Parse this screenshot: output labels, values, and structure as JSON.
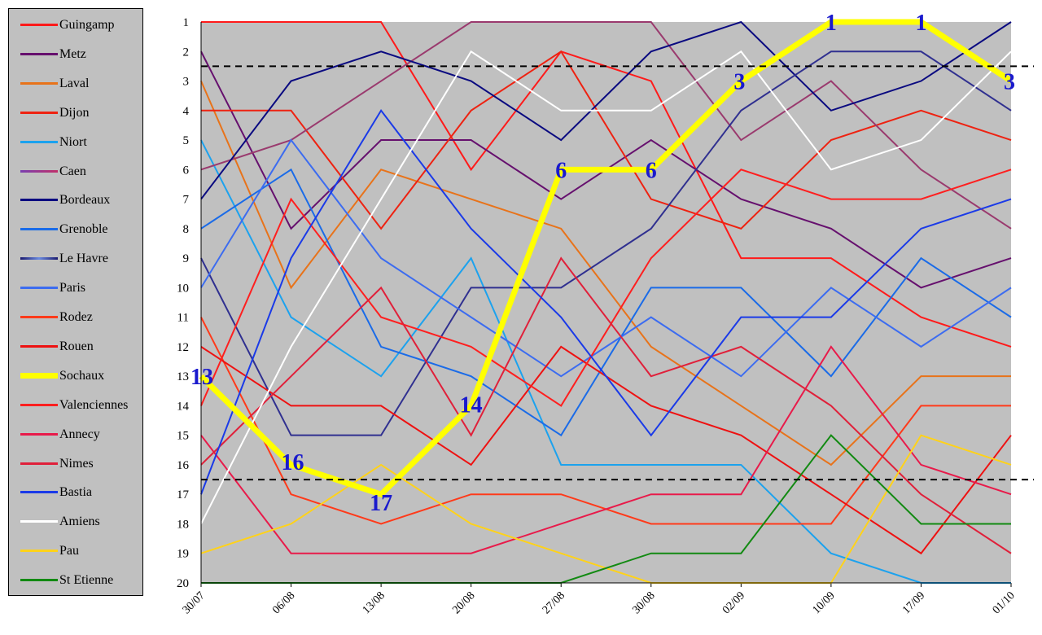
{
  "chart_data": {
    "type": "line",
    "title": "",
    "xlabel": "",
    "ylabel": "",
    "ylim": [
      1,
      20
    ],
    "y_inverted": true,
    "y_ticks": [
      "1",
      "2",
      "3",
      "4",
      "5",
      "6",
      "7",
      "8",
      "9",
      "10",
      "11",
      "12",
      "13",
      "14",
      "15",
      "16",
      "17",
      "18",
      "19",
      "20"
    ],
    "categories": [
      "30/07",
      "06/08",
      "13/08",
      "20/08",
      "27/08",
      "30/08",
      "02/09",
      "10/09",
      "17/09",
      "01/10"
    ],
    "reference_lines": [
      2.5,
      16.5
    ],
    "grid": false,
    "legend_position": "left",
    "plot_background": "#c0c0c0",
    "series": [
      {
        "name": "Guingamp",
        "color": "#ff1a1a",
        "width": 2,
        "values": [
          1,
          1,
          1,
          6,
          2,
          3,
          9,
          9,
          11,
          12
        ]
      },
      {
        "name": "Metz",
        "color": "#66106e",
        "width": 2,
        "values": [
          2,
          8,
          5,
          5,
          7,
          5,
          7,
          8,
          10,
          9
        ]
      },
      {
        "name": "Laval",
        "color": "#e8731a",
        "width": 2,
        "values": [
          3,
          10,
          6,
          7,
          8,
          12,
          14,
          16,
          13,
          13
        ]
      },
      {
        "name": "Dijon",
        "color": "#ee2211",
        "width": 2,
        "values": [
          4,
          4,
          8,
          4,
          2,
          7,
          8,
          5,
          4,
          5
        ]
      },
      {
        "name": "Niort",
        "color": "#1ca2ee",
        "width": 2,
        "values": [
          5,
          11,
          13,
          9,
          16,
          16,
          16,
          19,
          20,
          20
        ]
      },
      {
        "name": "Caen",
        "color": "#9a3a6e",
        "width": 2,
        "values": [
          6,
          5,
          3,
          1,
          1,
          1,
          5,
          3,
          6,
          8
        ]
      },
      {
        "name": "Bordeaux",
        "color": "#0a0a80",
        "width": 2,
        "values": [
          7,
          3,
          2,
          3,
          5,
          2,
          1,
          4,
          3,
          1
        ]
      },
      {
        "name": "Grenoble",
        "color": "#1a6be8",
        "width": 2,
        "values": [
          8,
          6,
          12,
          13,
          15,
          10,
          10,
          13,
          9,
          11
        ]
      },
      {
        "name": "Le Havre",
        "color": "#303090",
        "width": 2,
        "values": [
          9,
          15,
          15,
          10,
          10,
          8,
          4,
          2,
          2,
          4
        ]
      },
      {
        "name": "Paris",
        "color": "#3c6cf0",
        "width": 2,
        "values": [
          10,
          5,
          9,
          11,
          13,
          11,
          13,
          10,
          12,
          10
        ]
      },
      {
        "name": "Rodez",
        "color": "#ff3a1a",
        "width": 2,
        "values": [
          11,
          17,
          18,
          17,
          17,
          18,
          18,
          18,
          14,
          14
        ]
      },
      {
        "name": "Rouen",
        "color": "#ee1111",
        "width": 2,
        "values": [
          12,
          14,
          14,
          16,
          12,
          14,
          15,
          17,
          19,
          15
        ]
      },
      {
        "name": "Sochaux",
        "color": "#ffff00",
        "width": 7,
        "values": [
          13,
          16,
          17,
          14,
          6,
          6,
          3,
          1,
          1,
          3
        ]
      },
      {
        "name": "Valenciennes",
        "color": "#ff1f1f",
        "width": 2,
        "values": [
          14,
          7,
          11,
          12,
          14,
          9,
          6,
          7,
          7,
          6
        ]
      },
      {
        "name": "Annecy",
        "color": "#e81a4a",
        "width": 2,
        "values": [
          15,
          19,
          19,
          19,
          18,
          17,
          17,
          12,
          16,
          17
        ]
      },
      {
        "name": "Nimes",
        "color": "#e0203a",
        "width": 2,
        "values": [
          16,
          13,
          10,
          15,
          9,
          13,
          12,
          14,
          17,
          19
        ]
      },
      {
        "name": "Bastia",
        "color": "#1a3ae8",
        "width": 2,
        "values": [
          17,
          9,
          4,
          8,
          11,
          15,
          11,
          11,
          8,
          7
        ]
      },
      {
        "name": "Amiens",
        "color": "#ffffff",
        "width": 2,
        "values": [
          18,
          12,
          7,
          2,
          4,
          4,
          2,
          6,
          5,
          2
        ]
      },
      {
        "name": "Pau",
        "color": "#ffd21a",
        "width": 2,
        "values": [
          19,
          18,
          16,
          18,
          19,
          20,
          20,
          20,
          15,
          16
        ]
      },
      {
        "name": "St Etienne",
        "color": "#128a12",
        "width": 2,
        "values": [
          20,
          20,
          20,
          20,
          20,
          19,
          19,
          15,
          18,
          18
        ]
      }
    ],
    "annotations": [
      {
        "series": "Sochaux",
        "index": 0,
        "text": "13"
      },
      {
        "series": "Sochaux",
        "index": 1,
        "text": "16"
      },
      {
        "series": "Sochaux",
        "index": 2,
        "text": "17"
      },
      {
        "series": "Sochaux",
        "index": 3,
        "text": "14"
      },
      {
        "series": "Sochaux",
        "index": 4,
        "text": "6"
      },
      {
        "series": "Sochaux",
        "index": 5,
        "text": "6"
      },
      {
        "series": "Sochaux",
        "index": 6,
        "text": "3"
      },
      {
        "series": "Sochaux",
        "index": 7,
        "text": "1"
      },
      {
        "series": "Sochaux",
        "index": 8,
        "text": "1"
      },
      {
        "series": "Sochaux",
        "index": 9,
        "text": "3"
      }
    ]
  }
}
